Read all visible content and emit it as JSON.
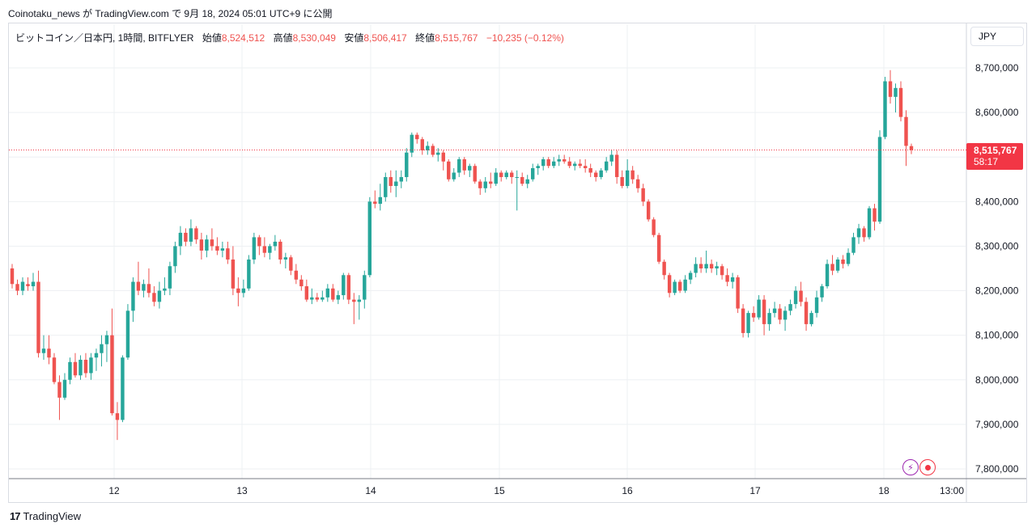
{
  "header": {
    "text": "Coinotaku_news が TradingView.com で 9月 18, 2024 05:01 UTC+9 に公開"
  },
  "legend": {
    "symbol": "ビットコイン／日本円, 1時間, BITFLYER",
    "open_label": "始値",
    "open": "8,524,512",
    "high_label": "高値",
    "high": "8,530,049",
    "low_label": "安値",
    "low": "8,506,417",
    "close_label": "終値",
    "close": "8,515,767",
    "change": "−10,235 (−0.12%)"
  },
  "currency": "JPY",
  "price_tag": {
    "price": "8,515,767",
    "countdown": "58:17"
  },
  "footer": {
    "logo_icon": "tradingview-logo-icon",
    "brand": "TradingView"
  },
  "icons": {
    "alert": "lightning-icon",
    "record": "record-icon"
  },
  "colors": {
    "up": "#26a69a",
    "down": "#ef5350",
    "price_line": "#f23645",
    "grid": "#eef0f3"
  },
  "chart_data": {
    "type": "candlestick",
    "title": "",
    "ylim": [
      7780000,
      8780000
    ],
    "y_ticks": [
      7800000,
      7900000,
      8000000,
      8100000,
      8200000,
      8300000,
      8400000,
      8500000,
      8600000,
      8700000
    ],
    "y_tick_labels": [
      "7,800,000",
      "7,900,000",
      "8,000,000",
      "8,100,000",
      "8,200,000",
      "8,300,000",
      "8,400,000",
      "8,500,000",
      "8,600,000",
      "8,700,000"
    ],
    "x_ticks": [
      "12",
      "13",
      "14",
      "15",
      "16",
      "17",
      "18",
      "13:00"
    ],
    "current_price": 8515767,
    "candles": [
      {
        "o": 8250000,
        "h": 8260000,
        "l": 8205000,
        "c": 8215000
      },
      {
        "o": 8215000,
        "h": 8225000,
        "l": 8190000,
        "c": 8200000
      },
      {
        "o": 8200000,
        "h": 8230000,
        "l": 8190000,
        "c": 8220000
      },
      {
        "o": 8215000,
        "h": 8230000,
        "l": 8200000,
        "c": 8210000
      },
      {
        "o": 8210000,
        "h": 8240000,
        "l": 8200000,
        "c": 8220000
      },
      {
        "o": 8220000,
        "h": 8245000,
        "l": 8050000,
        "c": 8060000
      },
      {
        "o": 8060000,
        "h": 8100000,
        "l": 8045000,
        "c": 8070000
      },
      {
        "o": 8070000,
        "h": 8100000,
        "l": 8035000,
        "c": 8050000
      },
      {
        "o": 8050000,
        "h": 8060000,
        "l": 7990000,
        "c": 7995000
      },
      {
        "o": 7995000,
        "h": 8010000,
        "l": 7910000,
        "c": 7960000
      },
      {
        "o": 7960000,
        "h": 8015000,
        "l": 7955000,
        "c": 8000000
      },
      {
        "o": 8000000,
        "h": 8050000,
        "l": 7990000,
        "c": 8040000
      },
      {
        "o": 8040000,
        "h": 8060000,
        "l": 8005000,
        "c": 8010000
      },
      {
        "o": 8010000,
        "h": 8055000,
        "l": 8000000,
        "c": 8045000
      },
      {
        "o": 8045000,
        "h": 8060000,
        "l": 8005000,
        "c": 8015000
      },
      {
        "o": 8015000,
        "h": 8060000,
        "l": 8000000,
        "c": 8050000
      },
      {
        "o": 8050000,
        "h": 8070000,
        "l": 8020000,
        "c": 8060000
      },
      {
        "o": 8060000,
        "h": 8100000,
        "l": 8030000,
        "c": 8080000
      },
      {
        "o": 8080000,
        "h": 8110000,
        "l": 8040000,
        "c": 8100000
      },
      {
        "o": 8100000,
        "h": 8160000,
        "l": 7920000,
        "c": 7925000
      },
      {
        "o": 7925000,
        "h": 7950000,
        "l": 7865000,
        "c": 7910000
      },
      {
        "o": 7910000,
        "h": 8055000,
        "l": 7905000,
        "c": 8050000
      },
      {
        "o": 8050000,
        "h": 8170000,
        "l": 8045000,
        "c": 8155000
      },
      {
        "o": 8155000,
        "h": 8230000,
        "l": 8130000,
        "c": 8220000
      },
      {
        "o": 8220000,
        "h": 8265000,
        "l": 8190000,
        "c": 8200000
      },
      {
        "o": 8200000,
        "h": 8225000,
        "l": 8185000,
        "c": 8215000
      },
      {
        "o": 8215000,
        "h": 8250000,
        "l": 8185000,
        "c": 8195000
      },
      {
        "o": 8195000,
        "h": 8210000,
        "l": 8165000,
        "c": 8175000
      },
      {
        "o": 8175000,
        "h": 8220000,
        "l": 8160000,
        "c": 8200000
      },
      {
        "o": 8200000,
        "h": 8230000,
        "l": 8190000,
        "c": 8205000
      },
      {
        "o": 8205000,
        "h": 8265000,
        "l": 8190000,
        "c": 8255000
      },
      {
        "o": 8255000,
        "h": 8310000,
        "l": 8240000,
        "c": 8300000
      },
      {
        "o": 8300000,
        "h": 8345000,
        "l": 8280000,
        "c": 8330000
      },
      {
        "o": 8330000,
        "h": 8340000,
        "l": 8300000,
        "c": 8310000
      },
      {
        "o": 8310000,
        "h": 8360000,
        "l": 8300000,
        "c": 8340000
      },
      {
        "o": 8340000,
        "h": 8345000,
        "l": 8305000,
        "c": 8315000
      },
      {
        "o": 8315000,
        "h": 8330000,
        "l": 8270000,
        "c": 8290000
      },
      {
        "o": 8290000,
        "h": 8325000,
        "l": 8275000,
        "c": 8315000
      },
      {
        "o": 8315000,
        "h": 8340000,
        "l": 8290000,
        "c": 8300000
      },
      {
        "o": 8300000,
        "h": 8320000,
        "l": 8280000,
        "c": 8290000
      },
      {
        "o": 8290000,
        "h": 8310000,
        "l": 8275000,
        "c": 8295000
      },
      {
        "o": 8295000,
        "h": 8310000,
        "l": 8260000,
        "c": 8270000
      },
      {
        "o": 8270000,
        "h": 8300000,
        "l": 8190000,
        "c": 8205000
      },
      {
        "o": 8205000,
        "h": 8230000,
        "l": 8165000,
        "c": 8195000
      },
      {
        "o": 8195000,
        "h": 8225000,
        "l": 8185000,
        "c": 8205000
      },
      {
        "o": 8205000,
        "h": 8280000,
        "l": 8200000,
        "c": 8270000
      },
      {
        "o": 8270000,
        "h": 8330000,
        "l": 8260000,
        "c": 8320000
      },
      {
        "o": 8320000,
        "h": 8325000,
        "l": 8280000,
        "c": 8300000
      },
      {
        "o": 8300000,
        "h": 8320000,
        "l": 8275000,
        "c": 8285000
      },
      {
        "o": 8285000,
        "h": 8305000,
        "l": 8270000,
        "c": 8300000
      },
      {
        "o": 8300000,
        "h": 8325000,
        "l": 8290000,
        "c": 8310000
      },
      {
        "o": 8310000,
        "h": 8315000,
        "l": 8260000,
        "c": 8270000
      },
      {
        "o": 8270000,
        "h": 8285000,
        "l": 8250000,
        "c": 8275000
      },
      {
        "o": 8275000,
        "h": 8280000,
        "l": 8235000,
        "c": 8245000
      },
      {
        "o": 8245000,
        "h": 8260000,
        "l": 8215000,
        "c": 8225000
      },
      {
        "o": 8225000,
        "h": 8235000,
        "l": 8200000,
        "c": 8210000
      },
      {
        "o": 8210000,
        "h": 8225000,
        "l": 8175000,
        "c": 8180000
      },
      {
        "o": 8180000,
        "h": 8205000,
        "l": 8170000,
        "c": 8185000
      },
      {
        "o": 8185000,
        "h": 8195000,
        "l": 8175000,
        "c": 8180000
      },
      {
        "o": 8180000,
        "h": 8200000,
        "l": 8175000,
        "c": 8185000
      },
      {
        "o": 8185000,
        "h": 8215000,
        "l": 8175000,
        "c": 8205000
      },
      {
        "o": 8205000,
        "h": 8215000,
        "l": 8175000,
        "c": 8180000
      },
      {
        "o": 8180000,
        "h": 8200000,
        "l": 8170000,
        "c": 8190000
      },
      {
        "o": 8190000,
        "h": 8240000,
        "l": 8180000,
        "c": 8235000
      },
      {
        "o": 8235000,
        "h": 8240000,
        "l": 8170000,
        "c": 8180000
      },
      {
        "o": 8180000,
        "h": 8195000,
        "l": 8125000,
        "c": 8175000
      },
      {
        "o": 8175000,
        "h": 8190000,
        "l": 8135000,
        "c": 8180000
      },
      {
        "o": 8180000,
        "h": 8245000,
        "l": 8160000,
        "c": 8235000
      },
      {
        "o": 8235000,
        "h": 8410000,
        "l": 8230000,
        "c": 8400000
      },
      {
        "o": 8400000,
        "h": 8425000,
        "l": 8385000,
        "c": 8395000
      },
      {
        "o": 8395000,
        "h": 8440000,
        "l": 8380000,
        "c": 8410000
      },
      {
        "o": 8410000,
        "h": 8465000,
        "l": 8400000,
        "c": 8455000
      },
      {
        "o": 8455000,
        "h": 8470000,
        "l": 8420000,
        "c": 8435000
      },
      {
        "o": 8435000,
        "h": 8470000,
        "l": 8410000,
        "c": 8445000
      },
      {
        "o": 8445000,
        "h": 8470000,
        "l": 8430000,
        "c": 8455000
      },
      {
        "o": 8455000,
        "h": 8520000,
        "l": 8445000,
        "c": 8510000
      },
      {
        "o": 8510000,
        "h": 8555000,
        "l": 8500000,
        "c": 8550000
      },
      {
        "o": 8550000,
        "h": 8555000,
        "l": 8530000,
        "c": 8540000
      },
      {
        "o": 8540000,
        "h": 8545000,
        "l": 8505000,
        "c": 8515000
      },
      {
        "o": 8515000,
        "h": 8535000,
        "l": 8505000,
        "c": 8525000
      },
      {
        "o": 8525000,
        "h": 8530000,
        "l": 8500000,
        "c": 8505000
      },
      {
        "o": 8505000,
        "h": 8520000,
        "l": 8490000,
        "c": 8510000
      },
      {
        "o": 8510000,
        "h": 8515000,
        "l": 8470000,
        "c": 8490000
      },
      {
        "o": 8490000,
        "h": 8495000,
        "l": 8445000,
        "c": 8450000
      },
      {
        "o": 8450000,
        "h": 8475000,
        "l": 8445000,
        "c": 8465000
      },
      {
        "o": 8465000,
        "h": 8500000,
        "l": 8455000,
        "c": 8495000
      },
      {
        "o": 8495000,
        "h": 8500000,
        "l": 8460000,
        "c": 8470000
      },
      {
        "o": 8470000,
        "h": 8485000,
        "l": 8455000,
        "c": 8480000
      },
      {
        "o": 8480000,
        "h": 8485000,
        "l": 8440000,
        "c": 8445000
      },
      {
        "o": 8445000,
        "h": 8450000,
        "l": 8415000,
        "c": 8430000
      },
      {
        "o": 8430000,
        "h": 8455000,
        "l": 8420000,
        "c": 8445000
      },
      {
        "o": 8445000,
        "h": 8465000,
        "l": 8430000,
        "c": 8440000
      },
      {
        "o": 8440000,
        "h": 8475000,
        "l": 8435000,
        "c": 8465000
      },
      {
        "o": 8465000,
        "h": 8470000,
        "l": 8445000,
        "c": 8455000
      },
      {
        "o": 8455000,
        "h": 8470000,
        "l": 8450000,
        "c": 8465000
      },
      {
        "o": 8465000,
        "h": 8470000,
        "l": 8440000,
        "c": 8455000
      },
      {
        "o": 8455000,
        "h": 8470000,
        "l": 8380000,
        "c": 8455000
      },
      {
        "o": 8455000,
        "h": 8465000,
        "l": 8435000,
        "c": 8440000
      },
      {
        "o": 8440000,
        "h": 8460000,
        "l": 8430000,
        "c": 8450000
      },
      {
        "o": 8450000,
        "h": 8485000,
        "l": 8445000,
        "c": 8475000
      },
      {
        "o": 8475000,
        "h": 8485000,
        "l": 8460000,
        "c": 8480000
      },
      {
        "o": 8480000,
        "h": 8500000,
        "l": 8470000,
        "c": 8495000
      },
      {
        "o": 8495000,
        "h": 8500000,
        "l": 8475000,
        "c": 8480000
      },
      {
        "o": 8480000,
        "h": 8500000,
        "l": 8475000,
        "c": 8490000
      },
      {
        "o": 8490000,
        "h": 8505000,
        "l": 8480000,
        "c": 8495000
      },
      {
        "o": 8495000,
        "h": 8505000,
        "l": 8485000,
        "c": 8490000
      },
      {
        "o": 8490000,
        "h": 8500000,
        "l": 8475000,
        "c": 8480000
      },
      {
        "o": 8480000,
        "h": 8490000,
        "l": 8470000,
        "c": 8485000
      },
      {
        "o": 8485000,
        "h": 8495000,
        "l": 8475000,
        "c": 8480000
      },
      {
        "o": 8480000,
        "h": 8495000,
        "l": 8465000,
        "c": 8475000
      },
      {
        "o": 8475000,
        "h": 8485000,
        "l": 8455000,
        "c": 8465000
      },
      {
        "o": 8465000,
        "h": 8470000,
        "l": 8445000,
        "c": 8455000
      },
      {
        "o": 8455000,
        "h": 8475000,
        "l": 8450000,
        "c": 8470000
      },
      {
        "o": 8470000,
        "h": 8500000,
        "l": 8465000,
        "c": 8490000
      },
      {
        "o": 8490000,
        "h": 8515000,
        "l": 8480000,
        "c": 8505000
      },
      {
        "o": 8505000,
        "h": 8515000,
        "l": 8440000,
        "c": 8455000
      },
      {
        "o": 8455000,
        "h": 8470000,
        "l": 8430000,
        "c": 8435000
      },
      {
        "o": 8435000,
        "h": 8495000,
        "l": 8430000,
        "c": 8470000
      },
      {
        "o": 8470000,
        "h": 8480000,
        "l": 8440000,
        "c": 8450000
      },
      {
        "o": 8450000,
        "h": 8460000,
        "l": 8420000,
        "c": 8430000
      },
      {
        "o": 8430000,
        "h": 8440000,
        "l": 8390000,
        "c": 8400000
      },
      {
        "o": 8400000,
        "h": 8405000,
        "l": 8355000,
        "c": 8360000
      },
      {
        "o": 8360000,
        "h": 8365000,
        "l": 8320000,
        "c": 8325000
      },
      {
        "o": 8325000,
        "h": 8330000,
        "l": 8260000,
        "c": 8265000
      },
      {
        "o": 8265000,
        "h": 8270000,
        "l": 8225000,
        "c": 8235000
      },
      {
        "o": 8235000,
        "h": 8240000,
        "l": 8185000,
        "c": 8195000
      },
      {
        "o": 8195000,
        "h": 8225000,
        "l": 8190000,
        "c": 8220000
      },
      {
        "o": 8220000,
        "h": 8225000,
        "l": 8195000,
        "c": 8200000
      },
      {
        "o": 8200000,
        "h": 8235000,
        "l": 8195000,
        "c": 8225000
      },
      {
        "o": 8225000,
        "h": 8245000,
        "l": 8215000,
        "c": 8240000
      },
      {
        "o": 8240000,
        "h": 8275000,
        "l": 8230000,
        "c": 8260000
      },
      {
        "o": 8260000,
        "h": 8275000,
        "l": 8240000,
        "c": 8250000
      },
      {
        "o": 8250000,
        "h": 8290000,
        "l": 8240000,
        "c": 8260000
      },
      {
        "o": 8260000,
        "h": 8270000,
        "l": 8240000,
        "c": 8250000
      },
      {
        "o": 8250000,
        "h": 8265000,
        "l": 8235000,
        "c": 8255000
      },
      {
        "o": 8255000,
        "h": 8260000,
        "l": 8225000,
        "c": 8235000
      },
      {
        "o": 8235000,
        "h": 8250000,
        "l": 8210000,
        "c": 8220000
      },
      {
        "o": 8220000,
        "h": 8240000,
        "l": 8205000,
        "c": 8230000
      },
      {
        "o": 8230000,
        "h": 8235000,
        "l": 8150000,
        "c": 8160000
      },
      {
        "o": 8160000,
        "h": 8170000,
        "l": 8095000,
        "c": 8105000
      },
      {
        "o": 8105000,
        "h": 8155000,
        "l": 8095000,
        "c": 8150000
      },
      {
        "o": 8150000,
        "h": 8165000,
        "l": 8130000,
        "c": 8140000
      },
      {
        "o": 8140000,
        "h": 8190000,
        "l": 8135000,
        "c": 8180000
      },
      {
        "o": 8180000,
        "h": 8190000,
        "l": 8100000,
        "c": 8125000
      },
      {
        "o": 8125000,
        "h": 8160000,
        "l": 8110000,
        "c": 8150000
      },
      {
        "o": 8150000,
        "h": 8175000,
        "l": 8140000,
        "c": 8160000
      },
      {
        "o": 8160000,
        "h": 8170000,
        "l": 8125000,
        "c": 8135000
      },
      {
        "o": 8135000,
        "h": 8165000,
        "l": 8110000,
        "c": 8155000
      },
      {
        "o": 8155000,
        "h": 8180000,
        "l": 8145000,
        "c": 8170000
      },
      {
        "o": 8170000,
        "h": 8210000,
        "l": 8160000,
        "c": 8200000
      },
      {
        "o": 8200000,
        "h": 8220000,
        "l": 8165000,
        "c": 8175000
      },
      {
        "o": 8175000,
        "h": 8185000,
        "l": 8110000,
        "c": 8125000
      },
      {
        "o": 8125000,
        "h": 8155000,
        "l": 8120000,
        "c": 8150000
      },
      {
        "o": 8150000,
        "h": 8200000,
        "l": 8140000,
        "c": 8185000
      },
      {
        "o": 8185000,
        "h": 8215000,
        "l": 8175000,
        "c": 8210000
      },
      {
        "o": 8210000,
        "h": 8270000,
        "l": 8205000,
        "c": 8260000
      },
      {
        "o": 8260000,
        "h": 8280000,
        "l": 8235000,
        "c": 8245000
      },
      {
        "o": 8245000,
        "h": 8275000,
        "l": 8240000,
        "c": 8270000
      },
      {
        "o": 8270000,
        "h": 8280000,
        "l": 8250000,
        "c": 8260000
      },
      {
        "o": 8260000,
        "h": 8295000,
        "l": 8255000,
        "c": 8285000
      },
      {
        "o": 8285000,
        "h": 8330000,
        "l": 8280000,
        "c": 8320000
      },
      {
        "o": 8320000,
        "h": 8350000,
        "l": 8305000,
        "c": 8340000
      },
      {
        "o": 8340000,
        "h": 8345000,
        "l": 8310000,
        "c": 8320000
      },
      {
        "o": 8320000,
        "h": 8390000,
        "l": 8315000,
        "c": 8385000
      },
      {
        "o": 8385000,
        "h": 8395000,
        "l": 8335000,
        "c": 8355000
      },
      {
        "o": 8355000,
        "h": 8560000,
        "l": 8350000,
        "c": 8545000
      },
      {
        "o": 8545000,
        "h": 8680000,
        "l": 8540000,
        "c": 8670000
      },
      {
        "o": 8670000,
        "h": 8695000,
        "l": 8620000,
        "c": 8635000
      },
      {
        "o": 8635000,
        "h": 8665000,
        "l": 8600000,
        "c": 8655000
      },
      {
        "o": 8655000,
        "h": 8670000,
        "l": 8580000,
        "c": 8590000
      },
      {
        "o": 8590000,
        "h": 8605000,
        "l": 8480000,
        "c": 8525000
      },
      {
        "o": 8524512,
        "h": 8530049,
        "l": 8506417,
        "c": 8515767
      }
    ]
  }
}
